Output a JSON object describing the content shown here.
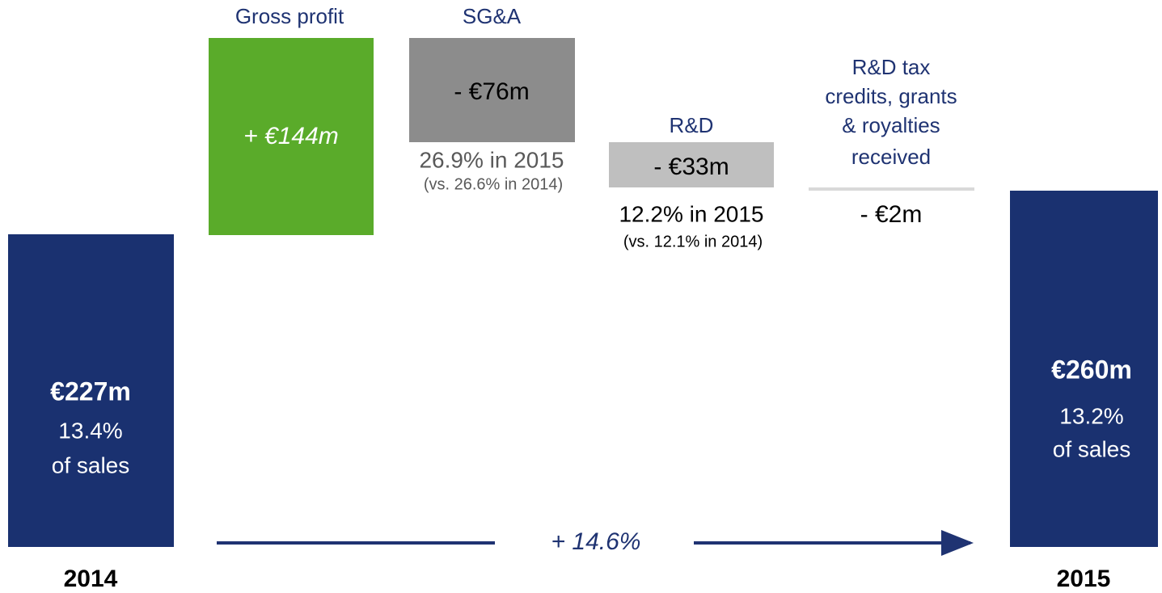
{
  "start": {
    "value": "€227m",
    "pct": "13.4%",
    "sub": "of sales",
    "year": "2014"
  },
  "steps": [
    {
      "label": "Gross profit",
      "value": "+ €144m"
    },
    {
      "label": "SG&A",
      "value": "- €76m",
      "note": "26.9% in 2015",
      "note_sub": "(vs. 26.6% in 2014)"
    },
    {
      "label": "R&D",
      "value": "- €33m",
      "note": "12.2% in 2015",
      "note_sub": "(vs. 12.1% in 2014)"
    },
    {
      "label_lines": [
        "R&D tax",
        "credits, grants",
        "& royalties",
        "received"
      ],
      "value": "- €2m"
    }
  ],
  "end": {
    "value": "€260m",
    "pct": "13.2%",
    "sub": "of sales",
    "year": "2015"
  },
  "growth": "+ 14.6%"
}
